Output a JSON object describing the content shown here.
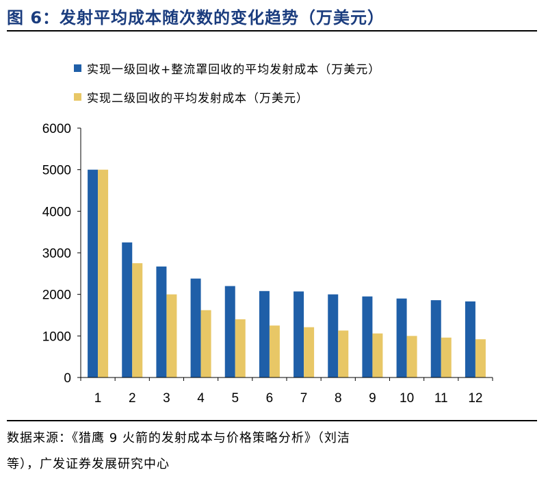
{
  "figure": {
    "title": "图 6：发射平均成本随次数的变化趋势（万美元）"
  },
  "source": {
    "line1": "数据来源：《猎鹰 9 火箭的发射成本与价格策略分析》（刘洁",
    "line2": "等），广发证券发展研究中心"
  },
  "colors": {
    "series1": "#1f5fa8",
    "series2": "#e8c766",
    "title": "#1a3c7e"
  },
  "chart_data": {
    "type": "bar",
    "categories": [
      "1",
      "2",
      "3",
      "4",
      "5",
      "6",
      "7",
      "8",
      "9",
      "10",
      "11",
      "12"
    ],
    "series": [
      {
        "name": "实现一级回收+整流罩回收的平均发射成本（万美元）",
        "values": [
          5000,
          3250,
          2670,
          2380,
          2200,
          2080,
          2070,
          2000,
          1950,
          1900,
          1860,
          1830
        ]
      },
      {
        "name": "实现二级回收的平均发射成本（万美元）",
        "values": [
          5000,
          2750,
          2000,
          1620,
          1400,
          1250,
          1210,
          1130,
          1060,
          1000,
          960,
          920
        ]
      }
    ],
    "yticks": [
      "0",
      "1000",
      "2000",
      "3000",
      "4000",
      "5000",
      "6000"
    ],
    "ylim": [
      0,
      6000
    ],
    "grid": false,
    "legend_position": "top-left"
  }
}
